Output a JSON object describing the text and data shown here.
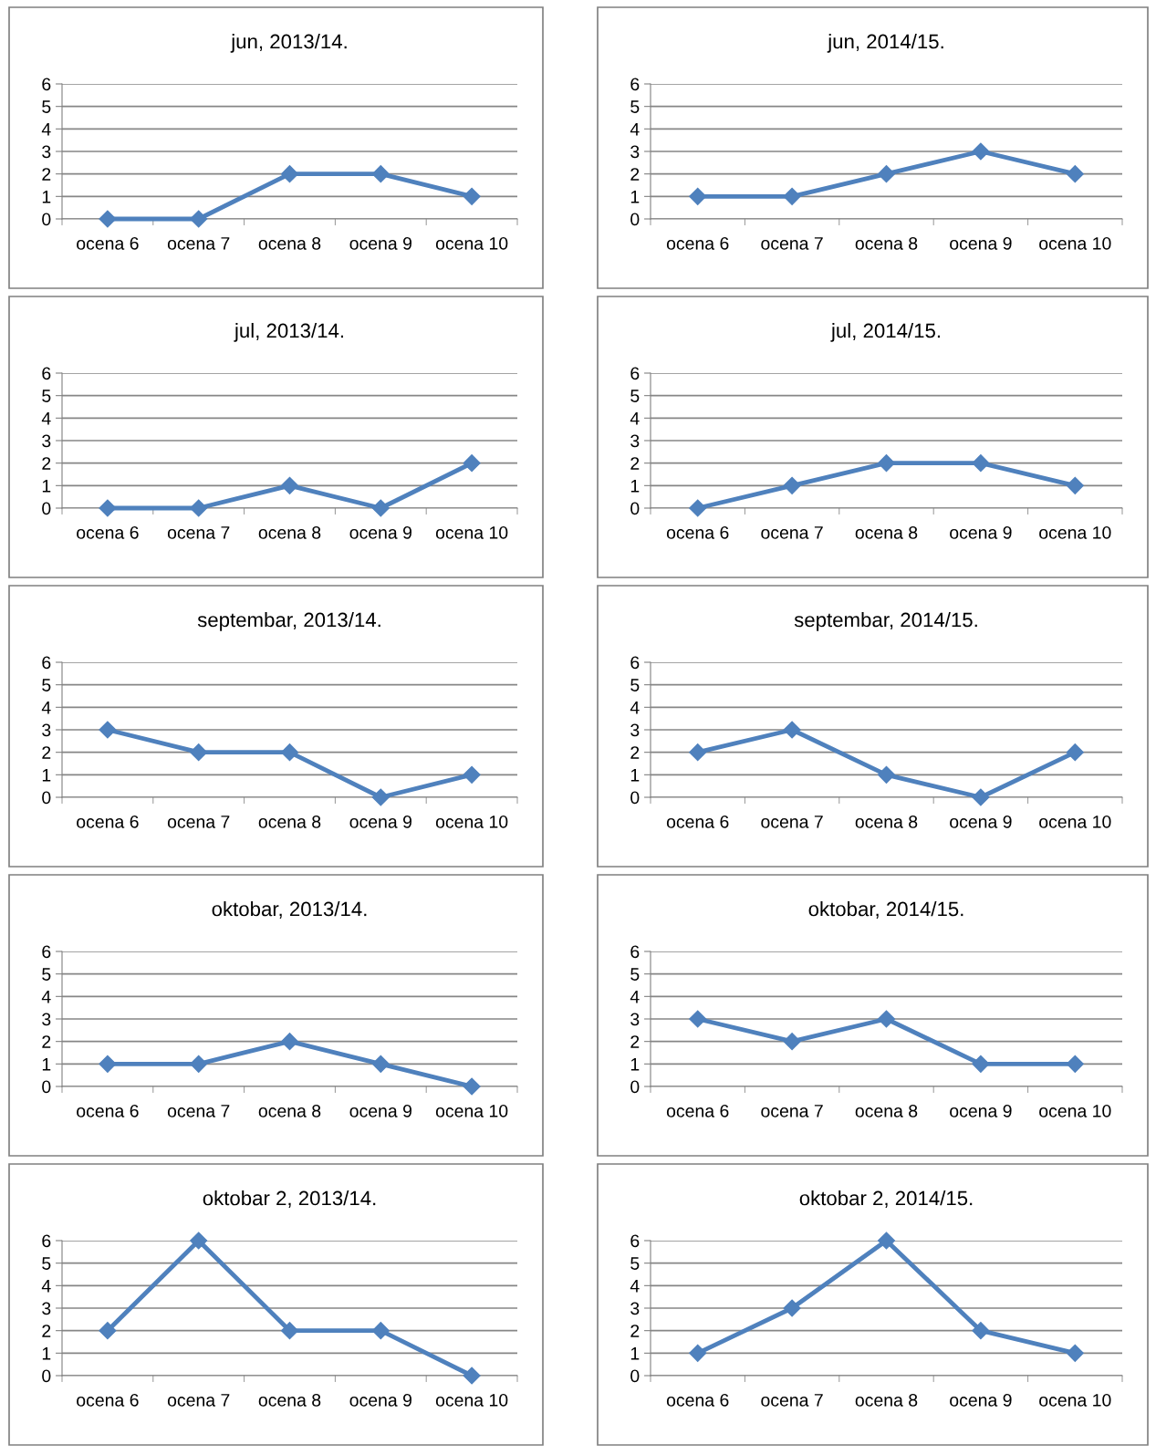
{
  "chart_data": [
    {
      "type": "line",
      "title": "jun, 2013/14.",
      "categories": [
        "ocena 6",
        "ocena 7",
        "ocena 8",
        "ocena 9",
        "ocena 10"
      ],
      "series": [
        {
          "color": "#4f81bd",
          "values": [
            0,
            0,
            2,
            2,
            1
          ]
        }
      ],
      "ylim": [
        0,
        6
      ],
      "yticks": [
        0,
        1,
        2,
        3,
        4,
        5,
        6
      ],
      "grid": "y",
      "marker": "diamond",
      "line_style": "solid"
    },
    {
      "type": "line",
      "title": "jun, 2014/15.",
      "categories": [
        "ocena 6",
        "ocena 7",
        "ocena 8",
        "ocena 9",
        "ocena 10"
      ],
      "series": [
        {
          "color": "#4f81bd",
          "values": [
            1,
            1,
            2,
            3,
            2
          ]
        }
      ],
      "ylim": [
        0,
        6
      ],
      "yticks": [
        0,
        1,
        2,
        3,
        4,
        5,
        6
      ],
      "grid": "y",
      "marker": "diamond",
      "line_style": "solid"
    },
    {
      "type": "line",
      "title": "jul, 2013/14.",
      "categories": [
        "ocena 6",
        "ocena 7",
        "ocena 8",
        "ocena 9",
        "ocena 10"
      ],
      "series": [
        {
          "color": "#4f81bd",
          "values": [
            0,
            0,
            1,
            0,
            2
          ]
        }
      ],
      "ylim": [
        0,
        6
      ],
      "yticks": [
        0,
        1,
        2,
        3,
        4,
        5,
        6
      ],
      "grid": "y",
      "marker": "diamond",
      "line_style": "solid"
    },
    {
      "type": "line",
      "title": "jul, 2014/15.",
      "categories": [
        "ocena 6",
        "ocena 7",
        "ocena 8",
        "ocena 9",
        "ocena 10"
      ],
      "series": [
        {
          "color": "#4f81bd",
          "values": [
            0,
            1,
            2,
            2,
            1
          ]
        }
      ],
      "ylim": [
        0,
        6
      ],
      "yticks": [
        0,
        1,
        2,
        3,
        4,
        5,
        6
      ],
      "grid": "y",
      "marker": "diamond",
      "line_style": "solid"
    },
    {
      "type": "line",
      "title": "septembar, 2013/14.",
      "categories": [
        "ocena 6",
        "ocena 7",
        "ocena 8",
        "ocena 9",
        "ocena 10"
      ],
      "series": [
        {
          "color": "#4f81bd",
          "values": [
            3,
            2,
            2,
            0,
            1
          ]
        }
      ],
      "ylim": [
        0,
        6
      ],
      "yticks": [
        0,
        1,
        2,
        3,
        4,
        5,
        6
      ],
      "grid": "y",
      "marker": "diamond",
      "line_style": "solid"
    },
    {
      "type": "line",
      "title": "septembar, 2014/15.",
      "categories": [
        "ocena 6",
        "ocena 7",
        "ocena 8",
        "ocena 9",
        "ocena 10"
      ],
      "series": [
        {
          "color": "#4f81bd",
          "values": [
            2,
            3,
            1,
            0,
            2
          ]
        }
      ],
      "ylim": [
        0,
        6
      ],
      "yticks": [
        0,
        1,
        2,
        3,
        4,
        5,
        6
      ],
      "grid": "y",
      "marker": "diamond",
      "line_style": "solid"
    },
    {
      "type": "line",
      "title": "oktobar, 2013/14.",
      "categories": [
        "ocena 6",
        "ocena 7",
        "ocena 8",
        "ocena 9",
        "ocena 10"
      ],
      "series": [
        {
          "color": "#4f81bd",
          "values": [
            1,
            1,
            2,
            1,
            0
          ]
        }
      ],
      "ylim": [
        0,
        6
      ],
      "yticks": [
        0,
        1,
        2,
        3,
        4,
        5,
        6
      ],
      "grid": "y",
      "marker": "diamond",
      "line_style": "solid"
    },
    {
      "type": "line",
      "title": "oktobar, 2014/15.",
      "categories": [
        "ocena 6",
        "ocena 7",
        "ocena 8",
        "ocena 9",
        "ocena 10"
      ],
      "series": [
        {
          "color": "#4f81bd",
          "values": [
            3,
            2,
            3,
            1,
            1
          ]
        }
      ],
      "ylim": [
        0,
        6
      ],
      "yticks": [
        0,
        1,
        2,
        3,
        4,
        5,
        6
      ],
      "grid": "y",
      "marker": "diamond",
      "line_style": "solid"
    },
    {
      "type": "line",
      "title": "oktobar 2, 2013/14.",
      "categories": [
        "ocena 6",
        "ocena 7",
        "ocena 8",
        "ocena 9",
        "ocena 10"
      ],
      "series": [
        {
          "color": "#4f81bd",
          "values": [
            2,
            6,
            2,
            2,
            0
          ]
        }
      ],
      "ylim": [
        0,
        6
      ],
      "yticks": [
        0,
        1,
        2,
        3,
        4,
        5,
        6
      ],
      "grid": "y",
      "marker": "diamond",
      "line_style": "solid"
    },
    {
      "type": "line",
      "title": "oktobar 2, 2014/15.",
      "categories": [
        "ocena 6",
        "ocena 7",
        "ocena 8",
        "ocena 9",
        "ocena 10"
      ],
      "series": [
        {
          "color": "#4f81bd",
          "values": [
            1,
            3,
            6,
            2,
            1
          ]
        }
      ],
      "ylim": [
        0,
        6
      ],
      "yticks": [
        0,
        1,
        2,
        3,
        4,
        5,
        6
      ],
      "grid": "y",
      "marker": "diamond",
      "line_style": "solid"
    }
  ]
}
